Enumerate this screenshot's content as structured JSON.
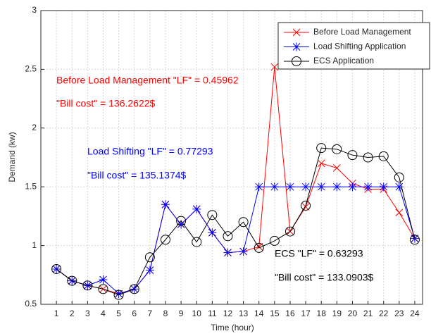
{
  "chart_data": {
    "type": "line",
    "x_label": "Time (hour)",
    "y_label": "Demand (kw)",
    "x": [
      1,
      2,
      3,
      4,
      5,
      6,
      7,
      8,
      9,
      10,
      11,
      12,
      13,
      14,
      15,
      16,
      17,
      18,
      19,
      20,
      21,
      22,
      23,
      24
    ],
    "xlim": [
      0,
      24.5
    ],
    "xticks": [
      1,
      2,
      3,
      4,
      5,
      6,
      7,
      8,
      9,
      10,
      11,
      12,
      13,
      14,
      15,
      16,
      17,
      18,
      19,
      20,
      21,
      22,
      23,
      24
    ],
    "ylim": [
      0.5,
      3
    ],
    "yticks": [
      0.5,
      1,
      1.5,
      2,
      2.5,
      3
    ],
    "grid": true,
    "legend": "upper right",
    "series": [
      {
        "name": "Before Load Management",
        "color": "#ff0000",
        "marker": "x",
        "values": [
          0.8,
          0.7,
          0.66,
          0.63,
          0.59,
          0.63,
          0.79,
          1.35,
          1.18,
          1.31,
          1.11,
          0.94,
          0.95,
          0.99,
          2.52,
          1.12,
          1.33,
          1.7,
          1.66,
          1.53,
          1.48,
          1.48,
          1.28,
          1.06
        ]
      },
      {
        "name": "Load Shifting Application",
        "color": "#0000ff",
        "marker": "asterisk",
        "values": [
          0.8,
          0.7,
          0.66,
          0.71,
          0.59,
          0.63,
          0.79,
          1.35,
          1.18,
          1.31,
          1.11,
          0.94,
          0.95,
          1.5,
          1.5,
          1.5,
          1.5,
          1.5,
          1.5,
          1.5,
          1.5,
          1.5,
          1.5,
          1.06
        ]
      },
      {
        "name": "ECS Application",
        "color": "#000000",
        "marker": "circle",
        "values": [
          0.8,
          0.7,
          0.66,
          0.63,
          0.58,
          0.63,
          0.9,
          1.05,
          1.21,
          1.03,
          1.26,
          1.08,
          1.2,
          0.98,
          1.04,
          1.12,
          1.34,
          1.83,
          1.82,
          1.77,
          1.75,
          1.76,
          1.58,
          1.05
        ]
      }
    ],
    "annotations": [
      {
        "text": "Before Load Management \"LF\" = 0.45962",
        "color": "#ff0000"
      },
      {
        "text": "\"Bill cost\" = 136.2622$",
        "color": "#ff0000"
      },
      {
        "text": "Load Shifting \"LF\" = 0.77293",
        "color": "#0000ff"
      },
      {
        "text": "\"Bill cost\" = 135.1374$",
        "color": "#0000ff"
      },
      {
        "text": "ECS \"LF\" = 0.63293",
        "color": "#000000"
      },
      {
        "text": "\"Bill cost\" = 133.0903$",
        "color": "#000000"
      }
    ]
  }
}
